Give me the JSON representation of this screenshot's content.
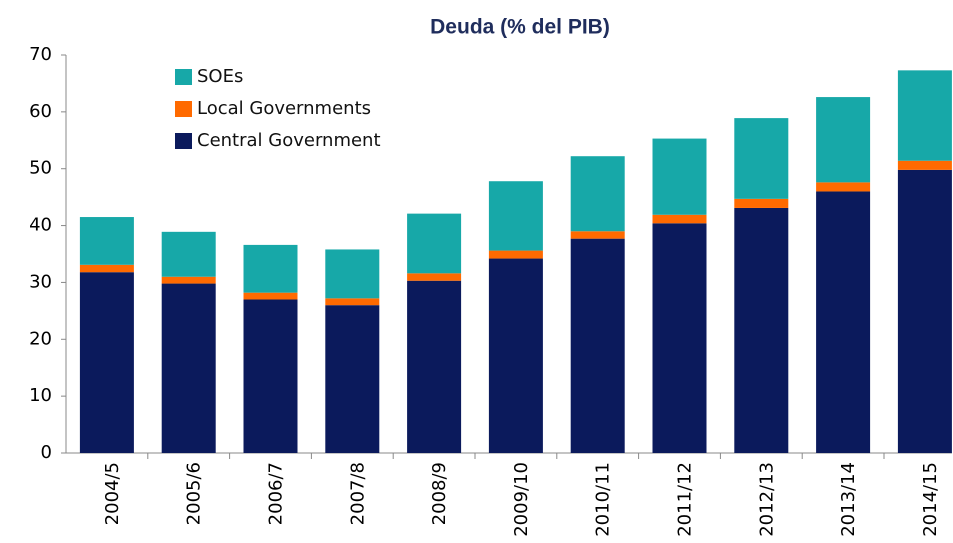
{
  "chart_data": {
    "type": "stacked_bar",
    "title": "Deuda (% del PIB)",
    "categories": [
      "2004/5",
      "2005/6",
      "2006/7",
      "2007/8",
      "2008/9",
      "2009/10",
      "2010/11",
      "2011/12",
      "2012/13",
      "2013/14",
      "2014/15"
    ],
    "series": [
      {
        "name": "Central Government",
        "color": "#0b1a5c",
        "values": [
          31.8,
          29.8,
          27.0,
          26.0,
          30.3,
          34.2,
          37.7,
          40.4,
          43.1,
          46.0,
          49.8
        ]
      },
      {
        "name": "Local Governments",
        "color": "#ff6a00",
        "values": [
          1.3,
          1.2,
          1.2,
          1.2,
          1.3,
          1.4,
          1.3,
          1.5,
          1.6,
          1.6,
          1.6
        ]
      },
      {
        "name": "SOEs",
        "color": "#17a8a8",
        "values": [
          8.4,
          7.9,
          8.4,
          8.6,
          10.5,
          12.2,
          13.2,
          13.4,
          14.2,
          15.0,
          15.9
        ]
      }
    ],
    "ylim": [
      0,
      70
    ],
    "yticks": [
      0,
      10,
      20,
      30,
      40,
      50,
      60,
      70
    ],
    "grid": false,
    "legend": "top-left"
  }
}
